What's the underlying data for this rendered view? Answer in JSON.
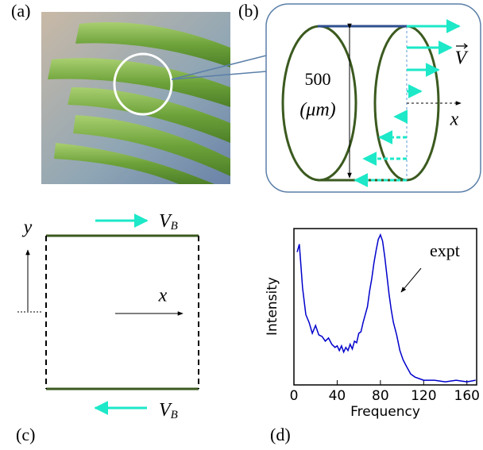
{
  "panels": {
    "a": "(a)",
    "b": "(b)",
    "c": "(c)",
    "d": "(d)"
  },
  "panel_b": {
    "height": "500",
    "unit": "(μm)",
    "velocity": "V",
    "axis": "x"
  },
  "panel_c": {
    "y_axis": "y",
    "x_axis": "x",
    "top_velocity": {
      "symbol": "V",
      "subscript": "B"
    },
    "bottom_velocity": {
      "symbol": "V",
      "subscript": "B"
    }
  },
  "chart_data": {
    "type": "line",
    "x_label": "Frequency",
    "y_label": "Intensity",
    "annotation": "expt",
    "xlim": [
      0,
      169
    ],
    "xticks": [
      0,
      40,
      80,
      120,
      160
    ],
    "ylim": [
      0,
      1
    ],
    "series": [
      {
        "name": "expt",
        "color": "#0000cc",
        "x": [
          3,
          5,
          8,
          11,
          14,
          17,
          20,
          23,
          26,
          29,
          32,
          35,
          38,
          40,
          42,
          44,
          46,
          48,
          50,
          52,
          54,
          56,
          58,
          60,
          62,
          64,
          66,
          68,
          70,
          72,
          74,
          76,
          78,
          80,
          82,
          84,
          86,
          88,
          90,
          92,
          95,
          98,
          101,
          104,
          108,
          112,
          116,
          120,
          130,
          140,
          150,
          160,
          168
        ],
        "values": [
          0.85,
          0.9,
          0.62,
          0.45,
          0.4,
          0.33,
          0.38,
          0.32,
          0.31,
          0.28,
          0.3,
          0.26,
          0.24,
          0.25,
          0.22,
          0.25,
          0.21,
          0.24,
          0.22,
          0.26,
          0.23,
          0.28,
          0.27,
          0.33,
          0.34,
          0.4,
          0.45,
          0.5,
          0.6,
          0.68,
          0.78,
          0.86,
          0.93,
          0.96,
          0.92,
          0.82,
          0.7,
          0.58,
          0.48,
          0.4,
          0.32,
          0.22,
          0.16,
          0.12,
          0.07,
          0.05,
          0.04,
          0.03,
          0.03,
          0.02,
          0.03,
          0.02,
          0.03
        ]
      }
    ]
  }
}
